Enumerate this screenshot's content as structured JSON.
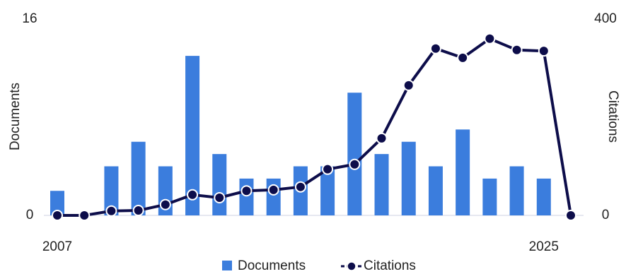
{
  "chart_data": {
    "type": "bar-line",
    "categories": [
      "2007",
      null,
      null,
      null,
      null,
      null,
      null,
      null,
      null,
      null,
      null,
      null,
      null,
      null,
      null,
      null,
      null,
      null,
      "2025",
      null
    ],
    "series": [
      {
        "name": "Documents",
        "type": "bar",
        "color": "#3b7ddd",
        "axis": "y",
        "values": [
          2,
          0,
          4,
          6,
          4,
          13,
          5,
          3,
          3,
          4,
          4,
          10,
          5,
          6,
          4,
          7,
          3,
          4,
          3,
          null
        ]
      },
      {
        "name": "Citations",
        "type": "line",
        "color": "#0d0d4a",
        "axis": "y2",
        "values": [
          0,
          0,
          9,
          10,
          22,
          42,
          36,
          50,
          52,
          58,
          94,
          104,
          157,
          265,
          340,
          321,
          360,
          337,
          335,
          0
        ]
      }
    ],
    "ylabel": "Documents",
    "y2label": "Citations",
    "ylim": [
      0,
      16
    ],
    "yticks": [
      0,
      16
    ],
    "y2lim": [
      0,
      400
    ],
    "y2ticks": [
      0,
      400
    ],
    "grid": false,
    "legend": "bottom"
  }
}
